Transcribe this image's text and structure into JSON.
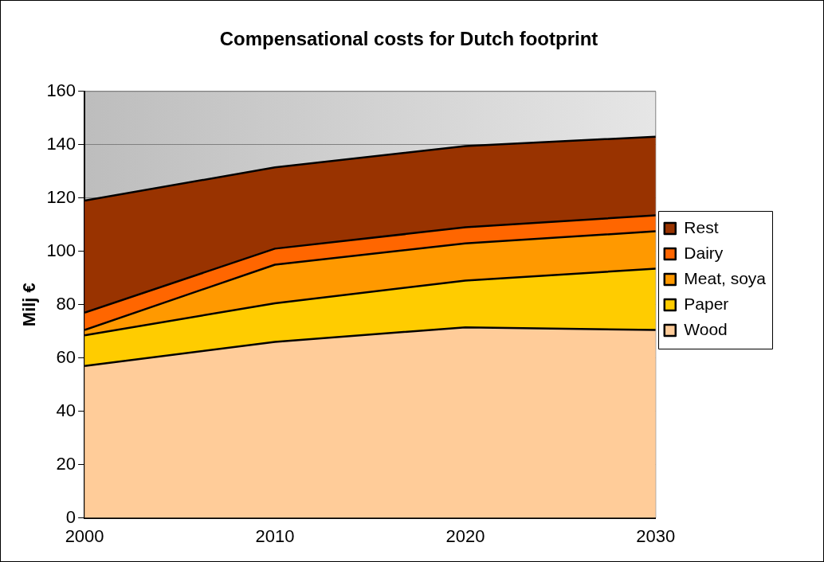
{
  "chart_data": {
    "type": "area",
    "title": "Compensational costs for Dutch footprint",
    "ylabel": "Milj €",
    "x": [
      2000,
      2010,
      2020,
      2030
    ],
    "xlim": [
      2000,
      2030
    ],
    "xticks": [
      2000,
      2010,
      2020,
      2030
    ],
    "ylim": [
      0,
      160
    ],
    "yticks": [
      0,
      20,
      40,
      60,
      80,
      100,
      120,
      140,
      160
    ],
    "stacked": true,
    "grid": "y",
    "legend": "right",
    "series": [
      {
        "name": "Wood",
        "color": "#ffcc99",
        "values": [
          57,
          66,
          71.5,
          70.5
        ]
      },
      {
        "name": "Paper",
        "color": "#ffcc00",
        "values": [
          11.5,
          14.5,
          17.5,
          23
        ]
      },
      {
        "name": "Meat, soya",
        "color": "#ff9900",
        "values": [
          2,
          14.5,
          14,
          14
        ]
      },
      {
        "name": "Dairy",
        "color": "#ff6600",
        "values": [
          6.5,
          6,
          6,
          6
        ]
      },
      {
        "name": "Rest",
        "color": "#993300",
        "values": [
          42,
          30.5,
          30.5,
          29.5
        ]
      }
    ]
  }
}
